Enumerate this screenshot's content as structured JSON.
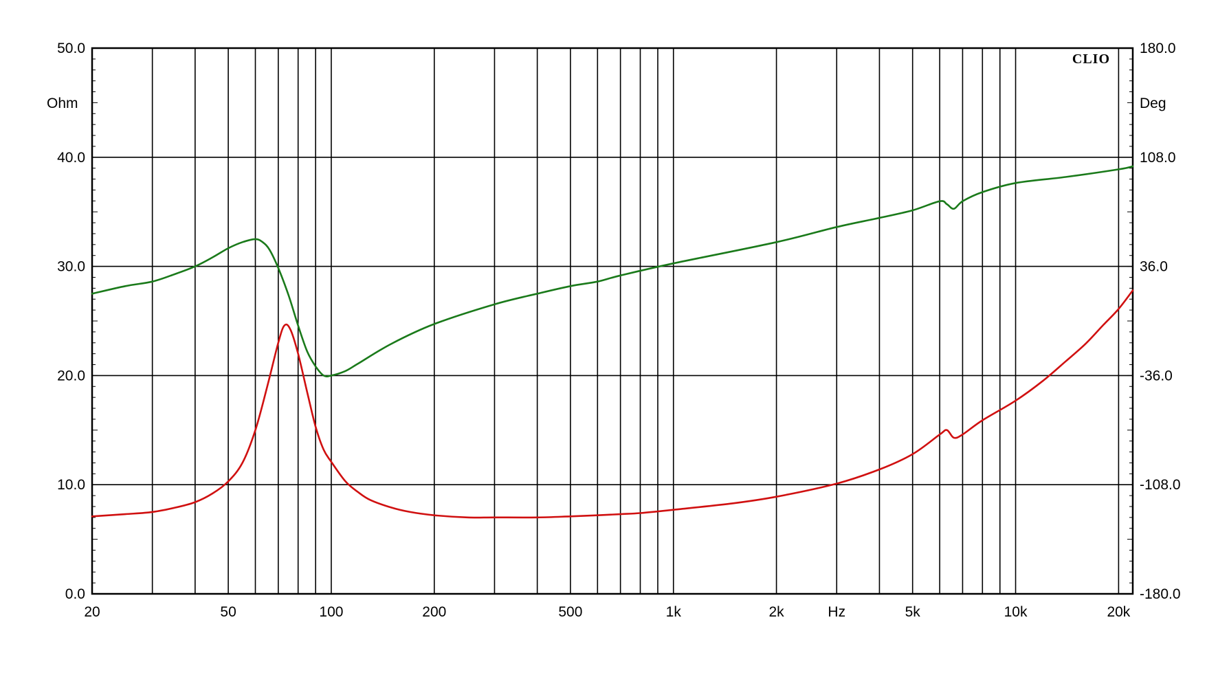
{
  "chart_data": {
    "type": "line",
    "brand": "CLIO",
    "x_scale": "log",
    "xlim": [
      20,
      22000
    ],
    "grid": true,
    "x_grid_values": [
      20,
      30,
      40,
      50,
      60,
      70,
      80,
      90,
      100,
      200,
      300,
      400,
      500,
      600,
      700,
      800,
      900,
      1000,
      2000,
      3000,
      4000,
      5000,
      6000,
      7000,
      8000,
      9000,
      10000,
      20000
    ],
    "x_tick_labels": [
      {
        "value": 20,
        "label": "20"
      },
      {
        "value": 50,
        "label": "50"
      },
      {
        "value": 100,
        "label": "100"
      },
      {
        "value": 200,
        "label": "200"
      },
      {
        "value": 500,
        "label": "500"
      },
      {
        "value": 1000,
        "label": "1k"
      },
      {
        "value": 2000,
        "label": "2k"
      },
      {
        "value": 3000,
        "label": "Hz"
      },
      {
        "value": 5000,
        "label": "5k"
      },
      {
        "value": 10000,
        "label": "10k"
      },
      {
        "value": 20000,
        "label": "20k"
      }
    ],
    "y_left": {
      "unit": "Ohm",
      "ylim": [
        0,
        50
      ],
      "ticks": [
        {
          "value": 50,
          "label": "50.0"
        },
        {
          "value": 40,
          "label": "40.0"
        },
        {
          "value": 30,
          "label": "30.0"
        },
        {
          "value": 20,
          "label": "20.0"
        },
        {
          "value": 10,
          "label": "10.0"
        },
        {
          "value": 0,
          "label": "0.0"
        }
      ]
    },
    "y_right": {
      "unit": "Deg",
      "ylim": [
        -180,
        180
      ],
      "ticks": [
        {
          "value": 180,
          "label": "180.0"
        },
        {
          "value": 108,
          "label": "108.0"
        },
        {
          "value": 36,
          "label": "36.0"
        },
        {
          "value": -36,
          "label": "-36.0"
        },
        {
          "value": -108,
          "label": "-108.0"
        },
        {
          "value": -180,
          "label": "-180.0"
        }
      ]
    },
    "series": [
      {
        "key": "impedance",
        "axis": "left",
        "color": "#d01010",
        "x": [
          20,
          25,
          30,
          35,
          40,
          45,
          50,
          55,
          60,
          65,
          70,
          73,
          76,
          80,
          85,
          90,
          95,
          100,
          110,
          120,
          130,
          150,
          170,
          200,
          250,
          300,
          400,
          500,
          600,
          700,
          800,
          1000,
          1500,
          2000,
          3000,
          4000,
          5000,
          6000,
          6300,
          6600,
          7000,
          8000,
          10000,
          12000,
          14000,
          16000,
          18000,
          20000,
          22000
        ],
        "values": [
          7.1,
          7.3,
          7.5,
          7.9,
          8.4,
          9.2,
          10.3,
          12.0,
          15.0,
          19.0,
          23.0,
          24.6,
          24.2,
          22.0,
          18.5,
          15.3,
          13.2,
          12.1,
          10.3,
          9.3,
          8.6,
          7.9,
          7.5,
          7.2,
          7.0,
          7.0,
          7.0,
          7.1,
          7.2,
          7.3,
          7.4,
          7.7,
          8.3,
          8.9,
          10.1,
          11.4,
          12.8,
          14.6,
          15.0,
          14.3,
          14.6,
          15.9,
          17.7,
          19.5,
          21.3,
          22.9,
          24.6,
          26.1,
          27.8
        ]
      },
      {
        "key": "phase",
        "axis": "right",
        "color": "#1a7a1a",
        "x": [
          20,
          25,
          30,
          35,
          40,
          45,
          50,
          55,
          60,
          63,
          66,
          70,
          75,
          80,
          85,
          90,
          95,
          100,
          110,
          120,
          150,
          200,
          300,
          400,
          500,
          600,
          700,
          1000,
          2000,
          3000,
          4000,
          5000,
          6000,
          6300,
          6600,
          7000,
          8000,
          10000,
          14000,
          20000,
          22000
        ],
        "values": [
          18,
          23,
          26,
          31,
          36,
          42,
          48,
          52,
          54,
          52,
          47,
          35,
          17,
          -3,
          -20,
          -30,
          -36,
          -36,
          -33,
          -28,
          -15,
          -2,
          11,
          18,
          23,
          26,
          30,
          38,
          52,
          62,
          68,
          73,
          79,
          77,
          74,
          79,
          85,
          91,
          95,
          100,
          102
        ]
      }
    ]
  }
}
